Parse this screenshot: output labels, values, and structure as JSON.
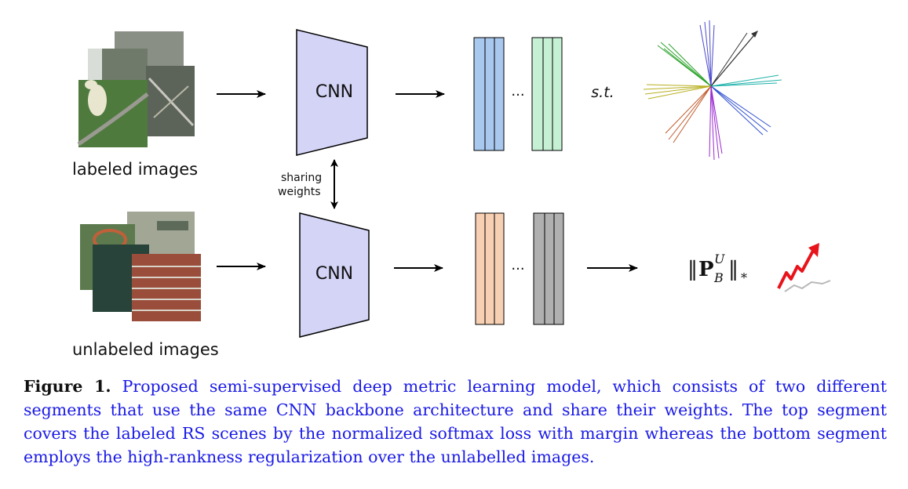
{
  "labels": {
    "labeled_images": "labeled images",
    "unlabeled_images": "unlabeled images",
    "sharing_line1": "sharing",
    "sharing_line2": "weights",
    "cnn_top": "CNN",
    "cnn_bottom": "CNN",
    "ellipsis_top": "...",
    "ellipsis_bottom": "...",
    "st": "s.t.",
    "nuclear_norm_base": "P",
    "nuclear_norm_sup": "U",
    "nuclear_norm_sub": "B",
    "nuclear_norm_star": "*"
  },
  "colors": {
    "cnn_fill": "#d4d4f7",
    "feat_top_a": "#a9c8ee",
    "feat_top_b": "#c6f0d4",
    "feat_bot_a": "#f7cfb2",
    "feat_bot_b": "#b0b0b0",
    "arrow_red": "#e8141c",
    "caption_blue": "#1a1ae6"
  },
  "caption": {
    "label": "Figure 1.",
    "text": "Proposed semi-supervised deep metric learning model, which consists of two different segments that use the same CNN backbone architecture and share their weights. The top segment covers the labeled RS scenes by the normalized softmax loss with margin whereas the bottom segment employs the high-rankness regularization over the unlabelled images."
  }
}
